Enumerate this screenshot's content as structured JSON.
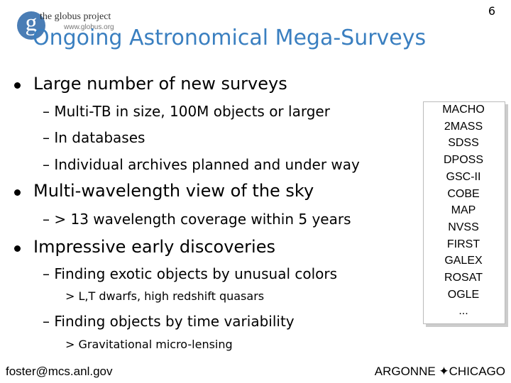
{
  "page_number": "6",
  "logo": {
    "mark": "g",
    "name": "the globus project",
    "url": "www.globus.org"
  },
  "title": "Ongoing Astronomical Mega-Surveys",
  "bullets": [
    {
      "text": "Large number of new surveys",
      "sub": [
        {
          "text": "– Multi-TB in size, 100M objects or larger",
          "sub": []
        },
        {
          "text": "– In databases",
          "sub": []
        },
        {
          "text": "– Individual archives planned and under way",
          "sub": []
        }
      ]
    },
    {
      "text": "Multi-wavelength view of the sky",
      "sub": [
        {
          "text": "– > 13 wavelength coverage within 5 years",
          "sub": []
        }
      ]
    },
    {
      "text": "Impressive early discoveries",
      "sub": [
        {
          "text": "– Finding exotic objects by unusual colors",
          "sub": [
            "> L,T dwarfs, high redshift quasars"
          ]
        },
        {
          "text": "– Finding objects by time variability",
          "sub": [
            "> Gravitational micro-lensing"
          ]
        }
      ]
    }
  ],
  "surveys": [
    "MACHO",
    "2MASS",
    "SDSS",
    "DPOSS",
    "GSC-II",
    "COBE",
    "MAP",
    "NVSS",
    "FIRST",
    "GALEX",
    "ROSAT",
    "OGLE",
    "..."
  ],
  "footer": {
    "left": "foster@mcs.anl.gov",
    "right": "ARGONNE ✦CHICAGO"
  }
}
